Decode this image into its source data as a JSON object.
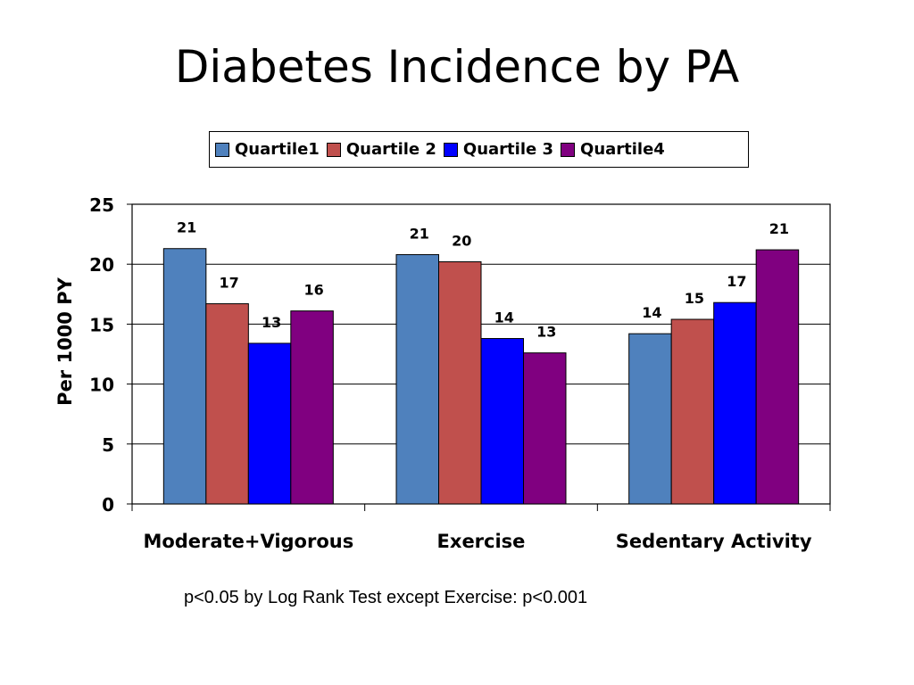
{
  "title": "Diabetes Incidence by PA",
  "footnote": "p<0.05 by Log Rank Test except Exercise: p<0.001",
  "chart_data": {
    "type": "bar",
    "title": "Diabetes Incidence by PA",
    "xlabel": "",
    "ylabel": "Per 1000 PY",
    "ylim": [
      0,
      25
    ],
    "yticks": [
      "0",
      "5",
      "10",
      "15",
      "20",
      "25"
    ],
    "grid": true,
    "legend_position": "top",
    "categories": [
      "Moderate+Vigorous",
      "Exercise",
      "Sedentary Activity"
    ],
    "series": [
      {
        "name": "Quartile1",
        "color": "#4F81BD",
        "values": [
          21.3,
          20.8,
          14.2
        ],
        "labels": [
          "21",
          "21",
          "14"
        ]
      },
      {
        "name": "Quartile 2",
        "color": "#C0504D",
        "values": [
          16.7,
          20.2,
          15.4
        ],
        "labels": [
          "17",
          "20",
          "15"
        ]
      },
      {
        "name": "Quartile 3",
        "color": "#0000FF",
        "values": [
          13.4,
          13.8,
          16.8
        ],
        "labels": [
          "13",
          "14",
          "17"
        ]
      },
      {
        "name": "Quartile4",
        "color": "#800080",
        "values": [
          16.1,
          12.6,
          21.2
        ],
        "labels": [
          "16",
          "13",
          "21"
        ]
      }
    ]
  }
}
